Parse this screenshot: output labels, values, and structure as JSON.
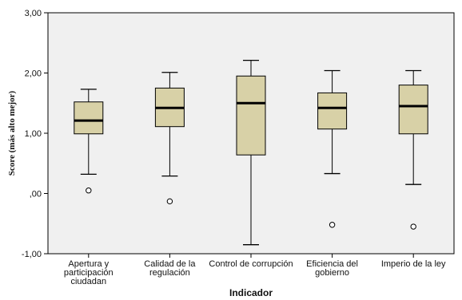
{
  "chart_data": {
    "type": "boxplot",
    "xlabel": "Indicador",
    "ylabel": "Score (más alto mejor)",
    "ylim": [
      -1.0,
      3.0
    ],
    "yticks": [
      -1.0,
      0.0,
      1.0,
      2.0,
      3.0
    ],
    "ytick_labels": [
      "-1,00",
      ",00",
      "1,00",
      "2,00",
      "3,00"
    ],
    "grid": false,
    "colors": {
      "box_fill": "#d8d1a7",
      "plot_background": "#f0f0f0",
      "line": "#000000",
      "median": "#000000"
    },
    "categories": [
      {
        "label_lines": [
          "Apertura y",
          "participación",
          "ciudadan"
        ],
        "whisker_low": 0.32,
        "q1": 0.99,
        "median": 1.21,
        "q3": 1.52,
        "whisker_high": 1.73,
        "outliers": [
          0.05
        ]
      },
      {
        "label_lines": [
          "Calidad de la",
          "regulación"
        ],
        "whisker_low": 0.29,
        "q1": 1.11,
        "median": 1.42,
        "q3": 1.75,
        "whisker_high": 2.01,
        "outliers": [
          -0.13
        ]
      },
      {
        "label_lines": [
          "Control de corrupción"
        ],
        "whisker_low": -0.85,
        "q1": 0.64,
        "median": 1.5,
        "q3": 1.95,
        "whisker_high": 2.21,
        "outliers": []
      },
      {
        "label_lines": [
          "Eficiencia del",
          "gobierno"
        ],
        "whisker_low": 0.33,
        "q1": 1.07,
        "median": 1.42,
        "q3": 1.67,
        "whisker_high": 2.04,
        "outliers": [
          -0.52
        ]
      },
      {
        "label_lines": [
          "Imperio de la ley"
        ],
        "whisker_low": 0.15,
        "q1": 0.99,
        "median": 1.45,
        "q3": 1.8,
        "whisker_high": 2.04,
        "outliers": [
          -0.55
        ]
      }
    ]
  }
}
